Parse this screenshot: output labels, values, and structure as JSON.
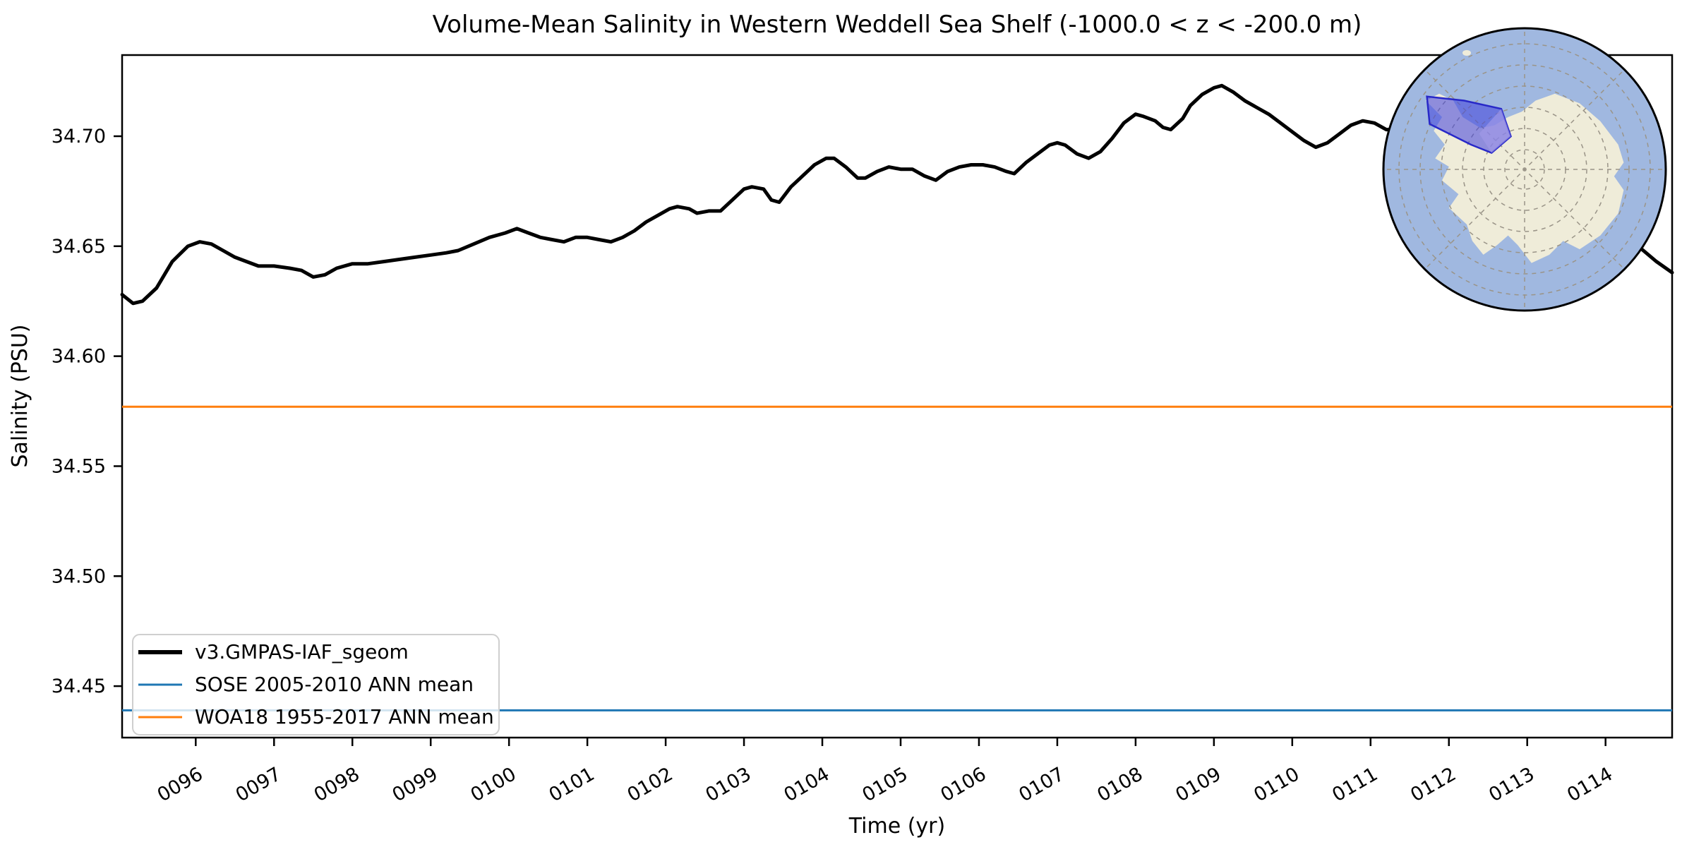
{
  "chart_data": {
    "type": "line",
    "title": "Volume-Mean Salinity in Western Weddell Sea Shelf (-1000.0 < z < -200.0 m)",
    "xlabel": "Time (yr)",
    "ylabel": "Salinity (PSU)",
    "xlim": [
      95.06,
      114.85
    ],
    "ylim": [
      34.4266,
      34.7369
    ],
    "grid": false,
    "legend_position": "lower left",
    "yticks": [
      {
        "v": 34.45,
        "label": "34.45"
      },
      {
        "v": 34.5,
        "label": "34.50"
      },
      {
        "v": 34.55,
        "label": "34.55"
      },
      {
        "v": 34.6,
        "label": "34.60"
      },
      {
        "v": 34.65,
        "label": "34.65"
      },
      {
        "v": 34.7,
        "label": "34.70"
      }
    ],
    "xticks": [
      {
        "v": 96,
        "label": "0096"
      },
      {
        "v": 97,
        "label": "0097"
      },
      {
        "v": 98,
        "label": "0098"
      },
      {
        "v": 99,
        "label": "0099"
      },
      {
        "v": 100,
        "label": "0100"
      },
      {
        "v": 101,
        "label": "0101"
      },
      {
        "v": 102,
        "label": "0102"
      },
      {
        "v": 103,
        "label": "0103"
      },
      {
        "v": 104,
        "label": "0104"
      },
      {
        "v": 105,
        "label": "0105"
      },
      {
        "v": 106,
        "label": "0106"
      },
      {
        "v": 107,
        "label": "0107"
      },
      {
        "v": 108,
        "label": "0108"
      },
      {
        "v": 109,
        "label": "0109"
      },
      {
        "v": 110,
        "label": "0110"
      },
      {
        "v": 111,
        "label": "0111"
      },
      {
        "v": 112,
        "label": "0112"
      },
      {
        "v": 113,
        "label": "0113"
      },
      {
        "v": 114,
        "label": "0114"
      }
    ],
    "xtick_rotation_deg": 30,
    "series": [
      {
        "name": "v3.GMPAS-IAF_sgeom",
        "color": "#000000",
        "line_width": 5,
        "points": [
          [
            95.06,
            34.628
          ],
          [
            95.2,
            34.624
          ],
          [
            95.32,
            34.625
          ],
          [
            95.5,
            34.631
          ],
          [
            95.7,
            34.643
          ],
          [
            95.9,
            34.65
          ],
          [
            96.05,
            34.652
          ],
          [
            96.2,
            34.651
          ],
          [
            96.35,
            34.648
          ],
          [
            96.5,
            34.645
          ],
          [
            96.65,
            34.643
          ],
          [
            96.8,
            34.641
          ],
          [
            97.0,
            34.641
          ],
          [
            97.2,
            34.64
          ],
          [
            97.35,
            34.639
          ],
          [
            97.5,
            34.636
          ],
          [
            97.65,
            34.637
          ],
          [
            97.8,
            34.64
          ],
          [
            98.0,
            34.642
          ],
          [
            98.2,
            34.642
          ],
          [
            98.4,
            34.643
          ],
          [
            98.6,
            34.644
          ],
          [
            98.8,
            34.645
          ],
          [
            99.0,
            34.646
          ],
          [
            99.2,
            34.647
          ],
          [
            99.35,
            34.648
          ],
          [
            99.55,
            34.651
          ],
          [
            99.75,
            34.654
          ],
          [
            99.95,
            34.656
          ],
          [
            100.1,
            34.658
          ],
          [
            100.25,
            34.656
          ],
          [
            100.4,
            34.654
          ],
          [
            100.55,
            34.653
          ],
          [
            100.7,
            34.652
          ],
          [
            100.85,
            34.654
          ],
          [
            101.0,
            34.654
          ],
          [
            101.15,
            34.653
          ],
          [
            101.3,
            34.652
          ],
          [
            101.45,
            34.654
          ],
          [
            101.6,
            34.657
          ],
          [
            101.75,
            34.661
          ],
          [
            101.9,
            34.664
          ],
          [
            102.05,
            34.667
          ],
          [
            102.15,
            34.668
          ],
          [
            102.3,
            34.667
          ],
          [
            102.4,
            34.665
          ],
          [
            102.55,
            34.666
          ],
          [
            102.7,
            34.666
          ],
          [
            102.85,
            34.671
          ],
          [
            103.0,
            34.676
          ],
          [
            103.1,
            34.677
          ],
          [
            103.25,
            34.676
          ],
          [
            103.35,
            34.671
          ],
          [
            103.45,
            34.67
          ],
          [
            103.6,
            34.677
          ],
          [
            103.75,
            34.682
          ],
          [
            103.9,
            34.687
          ],
          [
            104.05,
            34.69
          ],
          [
            104.15,
            34.69
          ],
          [
            104.3,
            34.686
          ],
          [
            104.45,
            34.681
          ],
          [
            104.55,
            34.681
          ],
          [
            104.7,
            34.684
          ],
          [
            104.85,
            34.686
          ],
          [
            105.0,
            34.685
          ],
          [
            105.15,
            34.685
          ],
          [
            105.3,
            34.682
          ],
          [
            105.45,
            34.68
          ],
          [
            105.6,
            34.684
          ],
          [
            105.75,
            34.686
          ],
          [
            105.9,
            34.687
          ],
          [
            106.05,
            34.687
          ],
          [
            106.2,
            34.686
          ],
          [
            106.35,
            34.684
          ],
          [
            106.45,
            34.683
          ],
          [
            106.6,
            34.688
          ],
          [
            106.75,
            34.692
          ],
          [
            106.9,
            34.696
          ],
          [
            107.0,
            34.697
          ],
          [
            107.1,
            34.696
          ],
          [
            107.25,
            34.692
          ],
          [
            107.4,
            34.69
          ],
          [
            107.55,
            34.693
          ],
          [
            107.7,
            34.699
          ],
          [
            107.85,
            34.706
          ],
          [
            108.0,
            34.71
          ],
          [
            108.1,
            34.709
          ],
          [
            108.25,
            34.707
          ],
          [
            108.35,
            34.704
          ],
          [
            108.45,
            34.703
          ],
          [
            108.6,
            34.708
          ],
          [
            108.7,
            34.714
          ],
          [
            108.85,
            34.719
          ],
          [
            109.0,
            34.722
          ],
          [
            109.1,
            34.723
          ],
          [
            109.25,
            34.72
          ],
          [
            109.4,
            34.716
          ],
          [
            109.55,
            34.713
          ],
          [
            109.7,
            34.71
          ],
          [
            109.85,
            34.706
          ],
          [
            110.0,
            34.702
          ],
          [
            110.15,
            34.698
          ],
          [
            110.3,
            34.695
          ],
          [
            110.45,
            34.697
          ],
          [
            110.6,
            34.701
          ],
          [
            110.75,
            34.705
          ],
          [
            110.9,
            34.707
          ],
          [
            111.05,
            34.706
          ],
          [
            111.2,
            34.703
          ],
          [
            111.35,
            34.703
          ],
          [
            111.5,
            34.706
          ],
          [
            111.7,
            34.71
          ],
          [
            111.95,
            34.713
          ],
          [
            112.2,
            34.713
          ],
          [
            112.45,
            34.71
          ],
          [
            112.7,
            34.704
          ],
          [
            112.95,
            34.697
          ],
          [
            113.2,
            34.689
          ],
          [
            113.45,
            34.681
          ],
          [
            113.7,
            34.672
          ],
          [
            113.95,
            34.664
          ],
          [
            114.2,
            34.656
          ],
          [
            114.45,
            34.649
          ],
          [
            114.65,
            34.643
          ],
          [
            114.85,
            34.638
          ]
        ]
      },
      {
        "name": "SOSE 2005-2010 ANN mean",
        "color": "#1f77b4",
        "line_width": 3,
        "constant": 34.439
      },
      {
        "name": "WOA18 1955-2017 ANN mean",
        "color": "#ff7f0e",
        "line_width": 3,
        "constant": 34.577
      }
    ]
  },
  "inset_map": {
    "region_name": "Western Weddell Sea Shelf",
    "colors": {
      "ocean": "#a0b8e0",
      "land": "#efecd9",
      "graticule": "#9a9488",
      "outline": "#000000",
      "region_fill": "#4040dd",
      "region_edge": "#2828c8",
      "region_light": "#a29ae8"
    }
  },
  "frame": {
    "spine_color": "#000000",
    "legend_border_color": "#cfcfcf"
  }
}
